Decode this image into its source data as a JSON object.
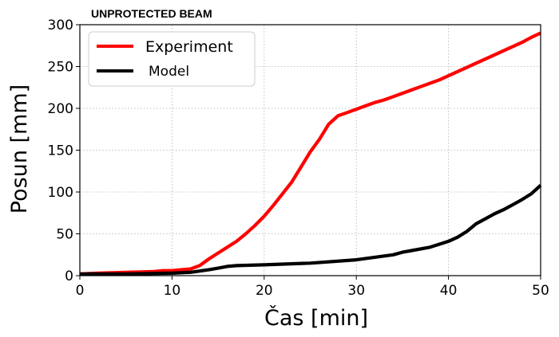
{
  "chart_data": {
    "type": "line",
    "title": "UNPROTECTED BEAM",
    "xlabel": "Čas [min]",
    "ylabel": "Posun [mm]",
    "xlim": [
      0,
      50
    ],
    "ylim": [
      0,
      300
    ],
    "xticks": [
      "0",
      "10",
      "20",
      "30",
      "40",
      "50"
    ],
    "yticks": [
      "0",
      "50",
      "100",
      "150",
      "200",
      "250",
      "300"
    ],
    "grid": true,
    "legend_position": "top-left",
    "series": [
      {
        "name": "Experiment",
        "color": "#ff0000",
        "x": [
          0,
          2,
          5,
          8,
          9,
          10,
          11,
          12,
          13,
          14,
          15,
          16,
          17,
          18,
          19,
          20,
          21,
          22,
          23,
          24,
          25,
          26,
          27,
          28,
          29,
          30,
          31,
          32,
          33,
          34,
          35,
          36,
          37,
          38,
          39,
          40,
          41,
          42,
          43,
          44,
          45,
          46,
          47,
          48,
          49,
          50
        ],
        "y": [
          2,
          3,
          4,
          5,
          6,
          6,
          7,
          8,
          12,
          20,
          27,
          34,
          41,
          50,
          60,
          71,
          84,
          98,
          112,
          130,
          148,
          163,
          181,
          191,
          195,
          199,
          203,
          207,
          210,
          214,
          218,
          222,
          226,
          230,
          234,
          239,
          244,
          249,
          254,
          259,
          264,
          269,
          274,
          279,
          285,
          290
        ]
      },
      {
        "name": "Model",
        "color": "#000000",
        "x": [
          0,
          5,
          10,
          12,
          14,
          15,
          16,
          17,
          20,
          25,
          30,
          32,
          34,
          35,
          36,
          38,
          40,
          41,
          42,
          43,
          44,
          45,
          46,
          47,
          48,
          49,
          50
        ],
        "y": [
          2,
          2,
          3,
          4,
          7,
          9,
          11,
          12,
          13,
          15,
          19,
          22,
          25,
          28,
          30,
          34,
          41,
          46,
          53,
          62,
          68,
          74,
          79,
          85,
          91,
          98,
          108
        ]
      }
    ]
  }
}
